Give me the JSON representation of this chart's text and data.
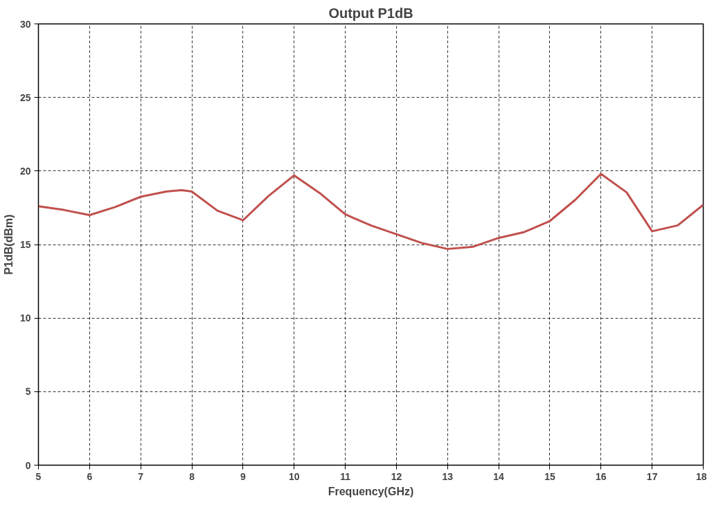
{
  "chart_data": {
    "type": "line",
    "title": "Output P1dB",
    "xlabel": "Frequency(GHz)",
    "ylabel": "P1dB(dBm)",
    "x": [
      5,
      5.5,
      6,
      6.5,
      7,
      7.5,
      7.8,
      8,
      8.5,
      9,
      9.5,
      10,
      10.5,
      11,
      11.5,
      12,
      12.5,
      13,
      13.5,
      14,
      14.5,
      15,
      15.5,
      16,
      16.5,
      17,
      17.5,
      18
    ],
    "series": [
      {
        "color": "#c0504d",
        "values": [
          17.6,
          17.35,
          17.0,
          17.55,
          18.25,
          18.6,
          18.7,
          18.6,
          17.3,
          16.65,
          18.3,
          19.7,
          18.5,
          17.05,
          16.3,
          15.7,
          15.1,
          14.7,
          14.85,
          15.45,
          15.85,
          16.6,
          18.05,
          19.8,
          18.55,
          15.9,
          16.3,
          17.7
        ]
      }
    ],
    "xlim": [
      5,
      18
    ],
    "xticks": [
      5,
      6,
      7,
      8,
      9,
      10,
      11,
      12,
      13,
      14,
      15,
      16,
      17,
      18
    ],
    "ylim": [
      0,
      30
    ],
    "yticks": [
      0,
      5,
      10,
      15,
      20,
      25,
      30
    ],
    "grid": true,
    "marker": "none",
    "line_style": "solid"
  }
}
